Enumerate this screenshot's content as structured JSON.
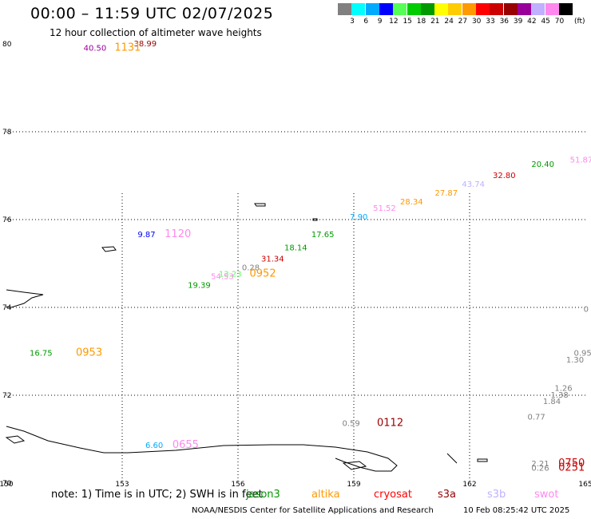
{
  "header": {
    "title": "00:00 – 11:59 UTC 02/07/2025",
    "subtitle": "12 hour collection of altimeter wave heights"
  },
  "color_scale": {
    "unit": "(ft)",
    "bins": [
      {
        "label": "3",
        "color": "#808080"
      },
      {
        "label": "6",
        "color": "#00ffff"
      },
      {
        "label": "9",
        "color": "#00aaff"
      },
      {
        "label": "12",
        "color": "#0000ff"
      },
      {
        "label": "15",
        "color": "#55ff55"
      },
      {
        "label": "18",
        "color": "#00cc00"
      },
      {
        "label": "21",
        "color": "#009900"
      },
      {
        "label": "24",
        "color": "#ffff00"
      },
      {
        "label": "27",
        "color": "#ffcc00"
      },
      {
        "label": "30",
        "color": "#ff9900"
      },
      {
        "label": "33",
        "color": "#ff0000"
      },
      {
        "label": "36",
        "color": "#cc0000"
      },
      {
        "label": "39",
        "color": "#990000"
      },
      {
        "label": "42",
        "color": "#990099"
      },
      {
        "label": "45",
        "color": "#c0b0ff"
      },
      {
        "label": "70",
        "color": "#ff88ee"
      },
      {
        "label": "",
        "color": "#000000"
      }
    ]
  },
  "axes": {
    "lon_ticks": [
      "150",
      "153",
      "156",
      "159",
      "162",
      "165"
    ],
    "lat_ticks": [
      "80",
      "78",
      "76",
      "74",
      "72",
      "70"
    ],
    "lon_range": [
      150,
      165
    ],
    "lat_range": [
      70,
      80
    ],
    "grid": true
  },
  "observations": [
    {
      "text": "38.99",
      "lon": 153.3,
      "lat": 79.95,
      "color": "#990000"
    },
    {
      "text": "40.50",
      "lon": 152.0,
      "lat": 79.85,
      "color": "#990099"
    },
    {
      "text": "1131",
      "lon": 152.8,
      "lat": 79.85,
      "color": "#ff9900",
      "time": true
    },
    {
      "text": "51.87",
      "lon": 164.6,
      "lat": 77.3,
      "color": "#ff88ee"
    },
    {
      "text": "20.40",
      "lon": 163.6,
      "lat": 77.2,
      "color": "#009900"
    },
    {
      "text": "32.80",
      "lon": 162.6,
      "lat": 76.95,
      "color": "#cc0000"
    },
    {
      "text": "43.74",
      "lon": 161.8,
      "lat": 76.75,
      "color": "#c0b0ff"
    },
    {
      "text": "27.87",
      "lon": 161.1,
      "lat": 76.55,
      "color": "#ff9900"
    },
    {
      "text": "28.34",
      "lon": 160.2,
      "lat": 76.35,
      "color": "#ff9900"
    },
    {
      "text": "51.52",
      "lon": 159.5,
      "lat": 76.2,
      "color": "#ff88ee"
    },
    {
      "text": "7.90",
      "lon": 158.9,
      "lat": 76.0,
      "color": "#00aaff"
    },
    {
      "text": "17.65",
      "lon": 157.9,
      "lat": 75.6,
      "color": "#009900"
    },
    {
      "text": "18.14",
      "lon": 157.2,
      "lat": 75.3,
      "color": "#009900"
    },
    {
      "text": "31.34",
      "lon": 156.6,
      "lat": 75.05,
      "color": "#cc0000"
    },
    {
      "text": "0.28",
      "lon": 156.1,
      "lat": 74.85,
      "color": "#808080"
    },
    {
      "text": "0952",
      "lon": 156.3,
      "lat": 74.7,
      "color": "#ff9900",
      "time": true
    },
    {
      "text": "13.23",
      "lon": 155.5,
      "lat": 74.7,
      "color": "#55ff55"
    },
    {
      "text": "54.53",
      "lon": 155.3,
      "lat": 74.65,
      "color": "#ff88ee"
    },
    {
      "text": "19.39",
      "lon": 154.7,
      "lat": 74.45,
      "color": "#009900"
    },
    {
      "text": "9.87",
      "lon": 153.4,
      "lat": 75.6,
      "color": "#0000ff"
    },
    {
      "text": "1120",
      "lon": 154.1,
      "lat": 75.6,
      "color": "#ff88ee",
      "time": true
    },
    {
      "text": "16.75",
      "lon": 150.6,
      "lat": 72.9,
      "color": "#009900"
    },
    {
      "text": "0953",
      "lon": 151.8,
      "lat": 72.9,
      "color": "#ff9900",
      "time": true
    },
    {
      "text": "0",
      "lon": 164.95,
      "lat": 73.9,
      "color": "#808080"
    },
    {
      "text": "0.95",
      "lon": 164.7,
      "lat": 72.9,
      "color": "#808080"
    },
    {
      "text": "1.30",
      "lon": 164.5,
      "lat": 72.75,
      "color": "#808080"
    },
    {
      "text": "1.26",
      "lon": 164.2,
      "lat": 72.1,
      "color": "#808080"
    },
    {
      "text": "1.38",
      "lon": 164.1,
      "lat": 71.95,
      "color": "#808080"
    },
    {
      "text": "1.84",
      "lon": 163.9,
      "lat": 71.8,
      "color": "#808080"
    },
    {
      "text": "0.77",
      "lon": 163.5,
      "lat": 71.45,
      "color": "#808080"
    },
    {
      "text": "0.59",
      "lon": 158.7,
      "lat": 71.3,
      "color": "#808080"
    },
    {
      "text": "0112",
      "lon": 159.6,
      "lat": 71.3,
      "color": "#990000",
      "time": true
    },
    {
      "text": "6.60",
      "lon": 153.6,
      "lat": 70.8,
      "color": "#00aaff"
    },
    {
      "text": "0655",
      "lon": 154.3,
      "lat": 70.8,
      "color": "#ff88ee",
      "time": true
    },
    {
      "text": "2.21",
      "lon": 163.6,
      "lat": 70.38,
      "color": "#808080"
    },
    {
      "text": "0.26",
      "lon": 163.6,
      "lat": 70.28,
      "color": "#808080"
    },
    {
      "text": "0750",
      "lon": 164.3,
      "lat": 70.38,
      "color": "#cc0000",
      "time": true
    },
    {
      "text": "0251",
      "lon": 164.3,
      "lat": 70.28,
      "color": "#cc0000",
      "time": true
    }
  ],
  "footer": {
    "note_prefix": "note:  1) Time is in UTC;  2) SWH is in feet",
    "legend": [
      {
        "label": "jason3",
        "color": "#009900"
      },
      {
        "label": "altika",
        "color": "#ff9900"
      },
      {
        "label": "cryosat",
        "color": "#ff0000"
      },
      {
        "label": "s3a",
        "color": "#990000"
      },
      {
        "label": "s3b",
        "color": "#c0b0ff"
      },
      {
        "label": "swot",
        "color": "#ff88ee"
      }
    ],
    "credit": "NOAA/NESDIS Center for Satellite Applications and Research",
    "timestamp": "10 Feb 08:25:42 UTC 2025"
  }
}
